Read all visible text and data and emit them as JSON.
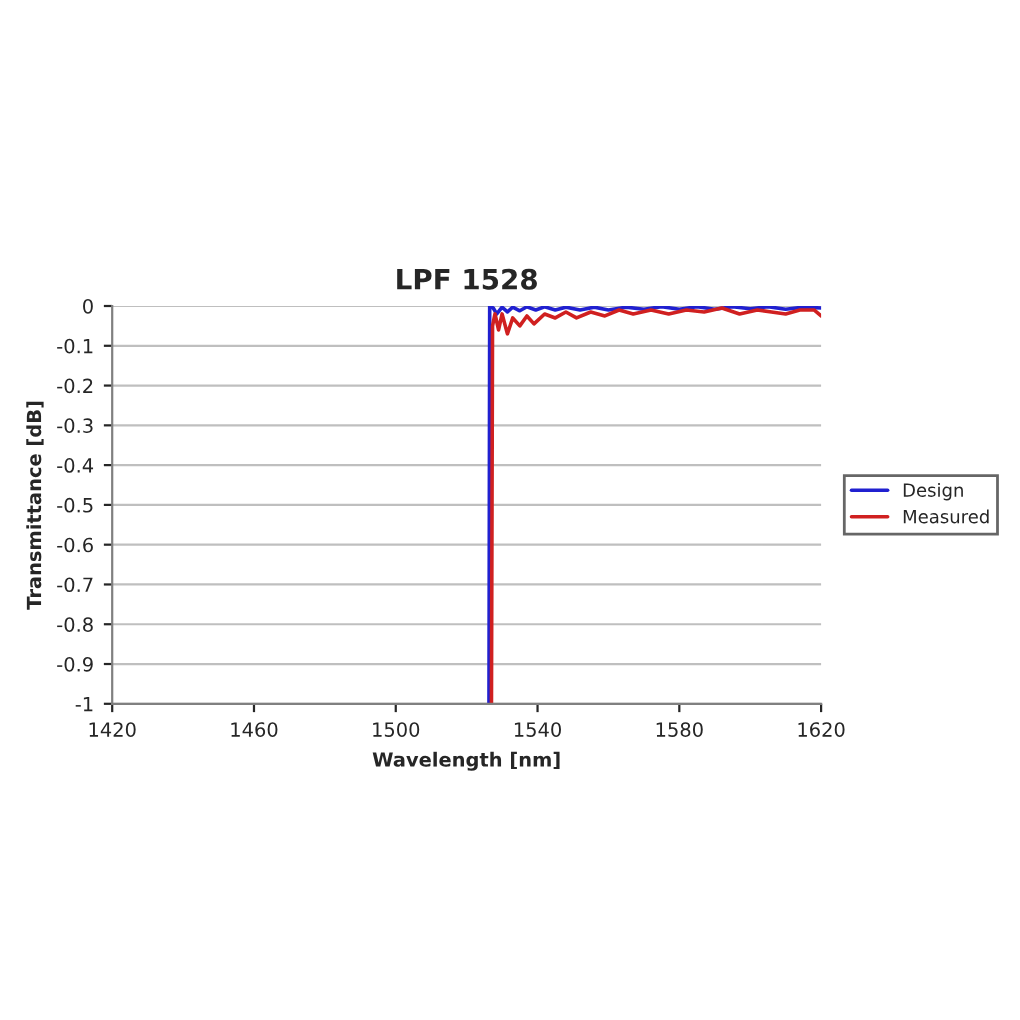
{
  "chart_data": {
    "type": "line",
    "title": "LPF 1528",
    "xlabel": "Wavelength [nm]",
    "ylabel": "Transmittance [dB]",
    "xlim": [
      1420,
      1620
    ],
    "xticks": [
      1420,
      1460,
      1500,
      1540,
      1580,
      1620
    ],
    "ylim": [
      -1,
      0
    ],
    "yticks": [
      {
        "value": -1,
        "label": "-1"
      },
      {
        "value": -0.9,
        "label": "-0.9"
      },
      {
        "value": -0.8,
        "label": "-0.8"
      },
      {
        "value": -0.7,
        "label": "-0.7"
      },
      {
        "value": -0.6,
        "label": "-0.6"
      },
      {
        "value": -0.5,
        "label": "-0.5"
      },
      {
        "value": -0.4,
        "label": "-0.4"
      },
      {
        "value": -0.3,
        "label": "-0.3"
      },
      {
        "value": -0.2,
        "label": "-0.2"
      },
      {
        "value": -0.1,
        "label": "-0.1"
      },
      {
        "value": 0,
        "label": "0"
      }
    ],
    "grid": "y",
    "legend": "right",
    "marker": "none",
    "line_style": "solid",
    "series": [
      {
        "name": "Design",
        "color": "#2020d0",
        "x": [
          1526.3,
          1526.5,
          1527.5,
          1528.5,
          1530,
          1531.5,
          1533,
          1535,
          1537,
          1539.5,
          1542,
          1545,
          1548,
          1552,
          1556,
          1560,
          1565,
          1570,
          1575,
          1580,
          1585,
          1590,
          1595,
          1600,
          1605,
          1610,
          1615,
          1620
        ],
        "values": [
          -1,
          0,
          -0.005,
          -0.02,
          -0.003,
          -0.015,
          -0.003,
          -0.012,
          -0.002,
          -0.01,
          -0.002,
          -0.01,
          -0.003,
          -0.01,
          -0.003,
          -0.01,
          -0.003,
          -0.008,
          -0.002,
          -0.008,
          -0.002,
          -0.008,
          -0.002,
          -0.007,
          -0.002,
          -0.008,
          -0.003,
          -0.005
        ]
      },
      {
        "name": "Measured",
        "color": "#d02020",
        "x": [
          1527,
          1527.3,
          1528,
          1529,
          1530,
          1531.5,
          1533,
          1535,
          1537,
          1539,
          1542,
          1545,
          1548,
          1551,
          1555,
          1559,
          1563,
          1567,
          1572,
          1577,
          1582,
          1587,
          1592,
          1597,
          1602,
          1606,
          1610,
          1614,
          1618,
          1620
        ],
        "values": [
          -1,
          -0.05,
          -0.02,
          -0.06,
          -0.02,
          -0.07,
          -0.03,
          -0.05,
          -0.025,
          -0.045,
          -0.02,
          -0.03,
          -0.015,
          -0.03,
          -0.015,
          -0.025,
          -0.01,
          -0.02,
          -0.01,
          -0.02,
          -0.01,
          -0.015,
          -0.005,
          -0.02,
          -0.01,
          -0.015,
          -0.02,
          -0.01,
          -0.01,
          -0.025
        ]
      }
    ]
  }
}
